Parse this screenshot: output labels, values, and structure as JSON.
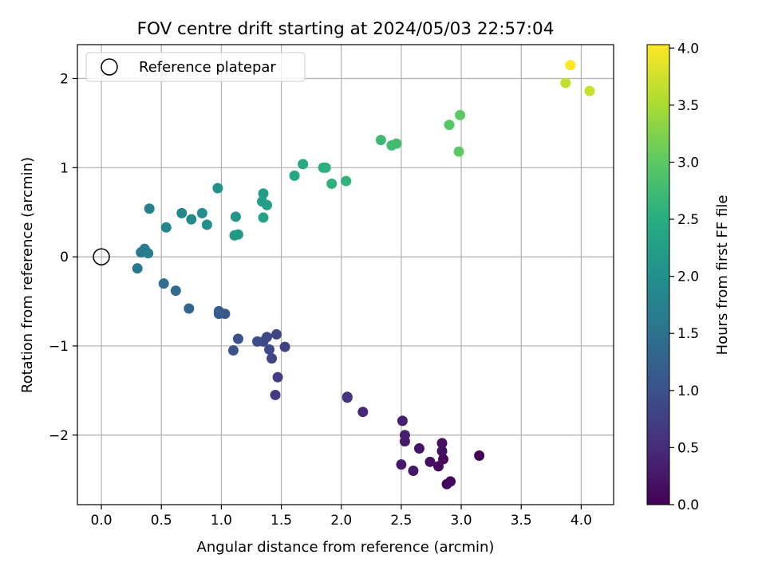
{
  "chart_data": {
    "type": "scatter",
    "title": "FOV centre drift starting at 2024/05/03 22:57:04",
    "xlabel": "Angular distance from reference (arcmin)",
    "ylabel": "Rotation from reference (arcmin)",
    "xlim": [
      -0.2,
      4.27
    ],
    "ylim": [
      -2.78,
      2.38
    ],
    "x_ticks": [
      0.0,
      0.5,
      1.0,
      1.5,
      2.0,
      2.5,
      3.0,
      3.5,
      4.0
    ],
    "x_tick_labels": [
      "0.0",
      "0.5",
      "1.0",
      "1.5",
      "2.0",
      "2.5",
      "3.0",
      "3.5",
      "4.0"
    ],
    "y_ticks": [
      -2,
      -1,
      0,
      1,
      2
    ],
    "y_tick_labels": [
      "−2",
      "−1",
      "0",
      "1",
      "2"
    ],
    "grid": true,
    "legend": {
      "position": "upper-left",
      "entries": [
        "Reference platepar"
      ]
    },
    "reference_point": {
      "x": 0.0,
      "y": 0.0
    },
    "colorbar": {
      "label": "Hours from first FF file",
      "colormap": "viridis",
      "range": [
        0.0,
        4.03
      ],
      "ticks": [
        0.0,
        0.5,
        1.0,
        1.5,
        2.0,
        2.5,
        3.0,
        3.5,
        4.0
      ],
      "tick_labels": [
        "0.0",
        "0.5",
        "1.0",
        "1.5",
        "2.0",
        "2.5",
        "3.0",
        "3.5",
        "4.0"
      ]
    },
    "points": [
      {
        "x": 3.15,
        "y": -2.23,
        "c": 0.0
      },
      {
        "x": 2.88,
        "y": -2.55,
        "c": 0.05
      },
      {
        "x": 2.91,
        "y": -2.52,
        "c": 0.08
      },
      {
        "x": 2.85,
        "y": -2.27,
        "c": 0.1
      },
      {
        "x": 2.81,
        "y": -2.35,
        "c": 0.13
      },
      {
        "x": 2.74,
        "y": -2.3,
        "c": 0.15
      },
      {
        "x": 2.84,
        "y": -2.18,
        "c": 0.18
      },
      {
        "x": 2.84,
        "y": -2.09,
        "c": 0.2
      },
      {
        "x": 2.65,
        "y": -2.15,
        "c": 0.22
      },
      {
        "x": 2.6,
        "y": -2.4,
        "c": 0.25
      },
      {
        "x": 2.5,
        "y": -2.33,
        "c": 0.28
      },
      {
        "x": 2.53,
        "y": -2.07,
        "c": 0.3
      },
      {
        "x": 2.53,
        "y": -2.0,
        "c": 0.33
      },
      {
        "x": 2.51,
        "y": -1.84,
        "c": 0.36
      },
      {
        "x": 2.18,
        "y": -1.74,
        "c": 0.45
      },
      {
        "x": 2.05,
        "y": -1.58,
        "c": 0.55
      },
      {
        "x": 2.05,
        "y": -1.57,
        "c": 0.58
      },
      {
        "x": 1.45,
        "y": -1.55,
        "c": 0.68
      },
      {
        "x": 1.47,
        "y": -1.35,
        "c": 0.72
      },
      {
        "x": 1.53,
        "y": -1.01,
        "c": 0.78
      },
      {
        "x": 1.46,
        "y": -0.87,
        "c": 0.82
      },
      {
        "x": 1.42,
        "y": -1.14,
        "c": 0.85
      },
      {
        "x": 1.4,
        "y": -1.04,
        "c": 0.88
      },
      {
        "x": 1.38,
        "y": -0.9,
        "c": 0.9
      },
      {
        "x": 1.35,
        "y": -0.95,
        "c": 0.92
      },
      {
        "x": 1.3,
        "y": -0.95,
        "c": 0.95
      },
      {
        "x": 1.14,
        "y": -0.92,
        "c": 1.0
      },
      {
        "x": 1.1,
        "y": -1.05,
        "c": 1.02
      },
      {
        "x": 1.03,
        "y": -0.64,
        "c": 1.1
      },
      {
        "x": 0.98,
        "y": -0.64,
        "c": 1.13
      },
      {
        "x": 0.98,
        "y": -0.61,
        "c": 1.15
      },
      {
        "x": 0.73,
        "y": -0.58,
        "c": 1.3
      },
      {
        "x": 0.62,
        "y": -0.38,
        "c": 1.38
      },
      {
        "x": 0.52,
        "y": -0.3,
        "c": 1.45
      },
      {
        "x": 0.3,
        "y": -0.13,
        "c": 1.58
      },
      {
        "x": 0.33,
        "y": 0.05,
        "c": 1.62
      },
      {
        "x": 0.36,
        "y": 0.09,
        "c": 1.66
      },
      {
        "x": 0.39,
        "y": 0.04,
        "c": 1.7
      },
      {
        "x": 0.4,
        "y": 0.54,
        "c": 1.75
      },
      {
        "x": 0.54,
        "y": 0.33,
        "c": 1.8
      },
      {
        "x": 0.67,
        "y": 0.49,
        "c": 1.86
      },
      {
        "x": 0.75,
        "y": 0.42,
        "c": 1.9
      },
      {
        "x": 0.84,
        "y": 0.49,
        "c": 1.95
      },
      {
        "x": 0.88,
        "y": 0.36,
        "c": 1.98
      },
      {
        "x": 0.97,
        "y": 0.77,
        "c": 2.02
      },
      {
        "x": 1.12,
        "y": 0.45,
        "c": 2.1
      },
      {
        "x": 1.11,
        "y": 0.24,
        "c": 2.14
      },
      {
        "x": 1.14,
        "y": 0.25,
        "c": 2.17
      },
      {
        "x": 1.34,
        "y": 0.62,
        "c": 2.24
      },
      {
        "x": 1.35,
        "y": 0.71,
        "c": 2.26
      },
      {
        "x": 1.38,
        "y": 0.58,
        "c": 2.28
      },
      {
        "x": 1.35,
        "y": 0.44,
        "c": 2.3
      },
      {
        "x": 1.61,
        "y": 0.91,
        "c": 2.4
      },
      {
        "x": 1.68,
        "y": 1.04,
        "c": 2.44
      },
      {
        "x": 1.85,
        "y": 1.0,
        "c": 2.52
      },
      {
        "x": 1.87,
        "y": 1.0,
        "c": 2.55
      },
      {
        "x": 1.92,
        "y": 0.82,
        "c": 2.58
      },
      {
        "x": 2.04,
        "y": 0.85,
        "c": 2.62
      },
      {
        "x": 2.33,
        "y": 1.31,
        "c": 2.72
      },
      {
        "x": 2.42,
        "y": 1.25,
        "c": 2.76
      },
      {
        "x": 2.46,
        "y": 1.27,
        "c": 2.78
      },
      {
        "x": 2.9,
        "y": 1.48,
        "c": 2.95
      },
      {
        "x": 2.99,
        "y": 1.59,
        "c": 3.0
      },
      {
        "x": 2.98,
        "y": 1.18,
        "c": 3.02
      },
      {
        "x": 3.87,
        "y": 1.95,
        "c": 3.65
      },
      {
        "x": 4.07,
        "y": 1.86,
        "c": 3.7
      },
      {
        "x": 3.91,
        "y": 2.15,
        "c": 4.03
      }
    ]
  }
}
